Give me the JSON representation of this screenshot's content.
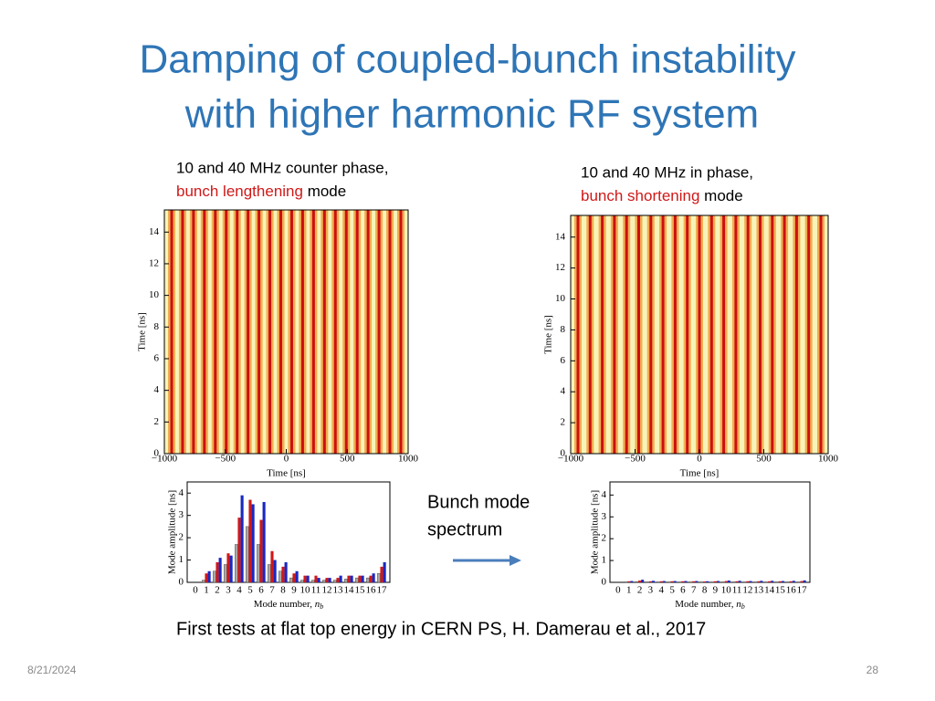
{
  "slide": {
    "title": [
      "Damping of coupled-bunch instability",
      "with higher harmonic RF system"
    ],
    "arrow_label": [
      "Bunch mode",
      "spectrum"
    ],
    "caption": "First tests at flat top energy in CERN PS, H. Damerau et al., 2017",
    "date": "8/21/2024",
    "page": "28"
  },
  "chart_data": [
    {
      "type": "heatmap",
      "heading": "10 and 40 MHz counter phase,",
      "heading_red": "bunch lengthening",
      "heading_rest": " mode",
      "x_label": "Time [ns]",
      "y_label": "Time [ns]",
      "xlim": [
        -1000,
        1000
      ],
      "ylim": [
        0,
        15.4
      ],
      "xticks": [
        {
          "value": -1000,
          "label": "−1000"
        },
        {
          "value": -500,
          "label": "−500"
        },
        0,
        500,
        1000
      ],
      "yticks": [
        0,
        2,
        4,
        6,
        8,
        10,
        12,
        14
      ]
    },
    {
      "type": "heatmap",
      "heading": "10 and 40 MHz in phase,",
      "heading_red": "bunch shortening",
      "heading_rest": " mode",
      "x_label": "Time [ns]",
      "y_label": "Time [ns]",
      "xlim": [
        -1000,
        1000
      ],
      "ylim": [
        0,
        15.4
      ],
      "xticks": [
        {
          "value": -1000,
          "label": "−1000"
        },
        {
          "value": -500,
          "label": "−500"
        },
        0,
        500,
        1000
      ],
      "yticks": [
        0,
        2,
        4,
        6,
        8,
        10,
        12,
        14
      ]
    },
    {
      "type": "bar",
      "x_label": "Mode number, ",
      "x_label_var": "n",
      "x_label_sub": "b",
      "y_label": "Mode amplitude [ns]",
      "categories": [
        "0",
        "1",
        "2",
        "3",
        "4",
        "5",
        "6",
        "7",
        "8",
        "9",
        "10",
        "11",
        "12",
        "13",
        "14",
        "15",
        "16",
        "17"
      ],
      "ylim": [
        0,
        4.5
      ],
      "yticks": [
        0,
        1,
        2,
        3,
        4
      ],
      "series": [
        {
          "color": "#a8a8a8",
          "values": [
            0,
            0.1,
            0.5,
            0.8,
            1.7,
            2.5,
            1.7,
            0.8,
            0.5,
            0.2,
            0.1,
            0.1,
            0.1,
            0.1,
            0.15,
            0.2,
            0.2,
            0.4
          ]
        },
        {
          "color": "#d01818",
          "values": [
            0,
            0.4,
            0.9,
            1.3,
            2.9,
            3.7,
            2.8,
            1.4,
            0.7,
            0.4,
            0.3,
            0.3,
            0.2,
            0.2,
            0.3,
            0.3,
            0.3,
            0.7
          ]
        },
        {
          "color": "#1a28c0",
          "values": [
            0,
            0.5,
            1.1,
            1.2,
            3.9,
            3.5,
            3.6,
            1.0,
            0.9,
            0.5,
            0.3,
            0.2,
            0.2,
            0.3,
            0.3,
            0.3,
            0.4,
            0.9
          ]
        }
      ]
    },
    {
      "type": "bar",
      "x_label": "Mode number, ",
      "x_label_var": "n",
      "x_label_sub": "b",
      "y_label": "Mode amplitude [ns]",
      "categories": [
        "0",
        "1",
        "2",
        "3",
        "4",
        "5",
        "6",
        "7",
        "8",
        "9",
        "10",
        "11",
        "12",
        "13",
        "14",
        "15",
        "16",
        "17"
      ],
      "ylim": [
        0,
        4.6
      ],
      "yticks": [
        0,
        1,
        2,
        3,
        4
      ],
      "series": [
        {
          "color": "#a8a8a8",
          "values": [
            0,
            0.02,
            0.03,
            0.02,
            0.02,
            0.02,
            0.02,
            0.02,
            0.02,
            0.02,
            0.02,
            0.02,
            0.02,
            0.02,
            0.02,
            0.02,
            0.02,
            0.02
          ]
        },
        {
          "color": "#d01818",
          "values": [
            0,
            0.05,
            0.08,
            0.05,
            0.05,
            0.05,
            0.05,
            0.05,
            0.04,
            0.05,
            0.06,
            0.05,
            0.05,
            0.05,
            0.05,
            0.05,
            0.05,
            0.06
          ]
        },
        {
          "color": "#1a28c0",
          "values": [
            0,
            0.06,
            0.12,
            0.07,
            0.06,
            0.06,
            0.06,
            0.06,
            0.05,
            0.06,
            0.08,
            0.07,
            0.06,
            0.07,
            0.07,
            0.06,
            0.07,
            0.09
          ]
        }
      ]
    }
  ]
}
